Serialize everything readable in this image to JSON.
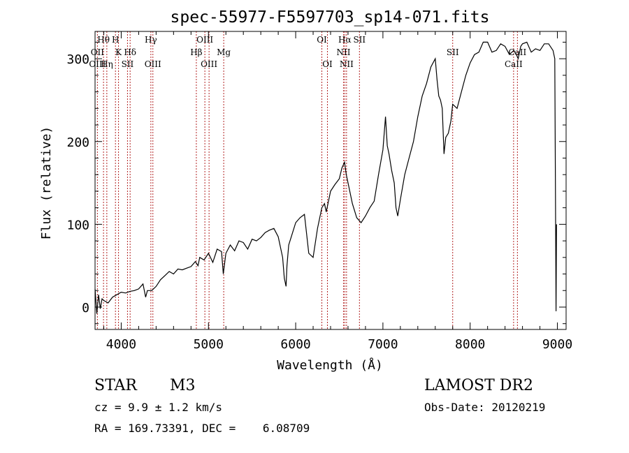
{
  "chart_data": {
    "type": "line",
    "title": "spec-55977-F5597703_sp14-071.fits",
    "xlabel": "Wavelength (Å)",
    "ylabel": "Flux (relative)",
    "xlim": [
      3700,
      9100
    ],
    "ylim": [
      -27,
      333
    ],
    "x_ticks": [
      4000,
      5000,
      6000,
      7000,
      8000,
      9000
    ],
    "y_ticks": [
      0,
      100,
      200,
      300
    ],
    "grid": false,
    "series": [
      {
        "color": "#000000",
        "x": [
          3700,
          3720,
          3740,
          3760,
          3780,
          3800,
          3850,
          3900,
          3950,
          4000,
          4050,
          4100,
          4150,
          4200,
          4250,
          4280,
          4300,
          4350,
          4400,
          4450,
          4500,
          4550,
          4600,
          4650,
          4700,
          4750,
          4800,
          4850,
          4880,
          4900,
          4950,
          5000,
          5050,
          5100,
          5150,
          5170,
          5200,
          5250,
          5300,
          5350,
          5400,
          5450,
          5500,
          5550,
          5600,
          5650,
          5700,
          5750,
          5800,
          5850,
          5870,
          5890,
          5900,
          5920,
          5950,
          6000,
          6050,
          6100,
          6150,
          6200,
          6250,
          6300,
          6330,
          6350,
          6400,
          6450,
          6500,
          6530,
          6560,
          6580,
          6600,
          6650,
          6700,
          6750,
          6800,
          6850,
          6900,
          6950,
          7000,
          7030,
          7050,
          7070,
          7100,
          7130,
          7150,
          7170,
          7200,
          7250,
          7300,
          7350,
          7400,
          7450,
          7500,
          7550,
          7600,
          7620,
          7640,
          7660,
          7680,
          7700,
          7720,
          7750,
          7780,
          7800,
          7850,
          7900,
          7950,
          8000,
          8050,
          8100,
          8150,
          8200,
          8250,
          8300,
          8350,
          8400,
          8450,
          8500,
          8530,
          8550,
          8580,
          8600,
          8650,
          8700,
          8750,
          8800,
          8850,
          8900,
          8950,
          8970,
          8980,
          8985,
          8990
        ],
        "y": [
          22,
          -8,
          15,
          -2,
          10,
          8,
          5,
          12,
          15,
          18,
          17,
          19,
          20,
          22,
          28,
          12,
          20,
          20,
          25,
          33,
          38,
          43,
          40,
          46,
          45,
          47,
          49,
          55,
          50,
          60,
          57,
          65,
          54,
          70,
          67,
          40,
          65,
          75,
          68,
          80,
          78,
          70,
          82,
          80,
          84,
          90,
          93,
          95,
          85,
          60,
          35,
          25,
          50,
          75,
          85,
          102,
          108,
          112,
          65,
          60,
          95,
          120,
          125,
          115,
          140,
          148,
          155,
          168,
          175,
          160,
          150,
          125,
          108,
          102,
          110,
          120,
          128,
          160,
          190,
          230,
          195,
          185,
          165,
          150,
          120,
          110,
          130,
          160,
          180,
          200,
          230,
          255,
          270,
          290,
          300,
          275,
          255,
          250,
          240,
          185,
          205,
          210,
          225,
          245,
          240,
          260,
          280,
          295,
          305,
          308,
          320,
          320,
          308,
          310,
          318,
          315,
          305,
          310,
          305,
          300,
          315,
          318,
          320,
          308,
          312,
          310,
          318,
          318,
          310,
          300,
          100,
          -5,
          100
        ]
      }
    ],
    "annotations": [
      {
        "label": "Hθ",
        "x": 3797,
        "row": 0
      },
      {
        "label": "H",
        "x": 3934,
        "row": 0
      },
      {
        "label": "Hγ",
        "x": 4340,
        "row": 0
      },
      {
        "label": "OIII",
        "x": 4959,
        "row": 0
      },
      {
        "label": "OI",
        "x": 6300,
        "row": 0
      },
      {
        "label": "Hα",
        "x": 6563,
        "row": 0
      },
      {
        "label": "SII",
        "x": 6731,
        "row": 0
      },
      {
        "label": "OII",
        "x": 3727,
        "row": 1
      },
      {
        "label": "K",
        "x": 3969,
        "row": 1
      },
      {
        "label": "Hδ",
        "x": 4102,
        "row": 1
      },
      {
        "label": "Hβ",
        "x": 4861,
        "row": 1
      },
      {
        "label": "Mg",
        "x": 5175,
        "row": 1
      },
      {
        "label": "NII",
        "x": 6548,
        "row": 1
      },
      {
        "label": "SII",
        "x": 7800,
        "row": 1
      },
      {
        "label": "CaII",
        "x": 8542,
        "row": 1
      },
      {
        "label": "OIII",
        "x": 3727,
        "row": 2
      },
      {
        "label": "Hη",
        "x": 3835,
        "row": 2
      },
      {
        "label": "SII",
        "x": 4072,
        "row": 2
      },
      {
        "label": "OIII",
        "x": 4363,
        "row": 2
      },
      {
        "label": "OIII",
        "x": 5007,
        "row": 2
      },
      {
        "label": "OI",
        "x": 6364,
        "row": 2
      },
      {
        "label": "NII",
        "x": 6583,
        "row": 2
      },
      {
        "label": "CaII",
        "x": 8498,
        "row": 2
      }
    ]
  },
  "footer": {
    "object_type": "STAR",
    "subclass": "M3",
    "redshift": "cz = 9.9 ± 1.2 km/s",
    "coords": "RA = 169.73391, DEC =    6.08709",
    "survey": "LAMOST DR2",
    "obs_date": "Obs-Date: 20120219"
  },
  "colors": {
    "axis": "#000000",
    "line_marker": "#b22222"
  }
}
